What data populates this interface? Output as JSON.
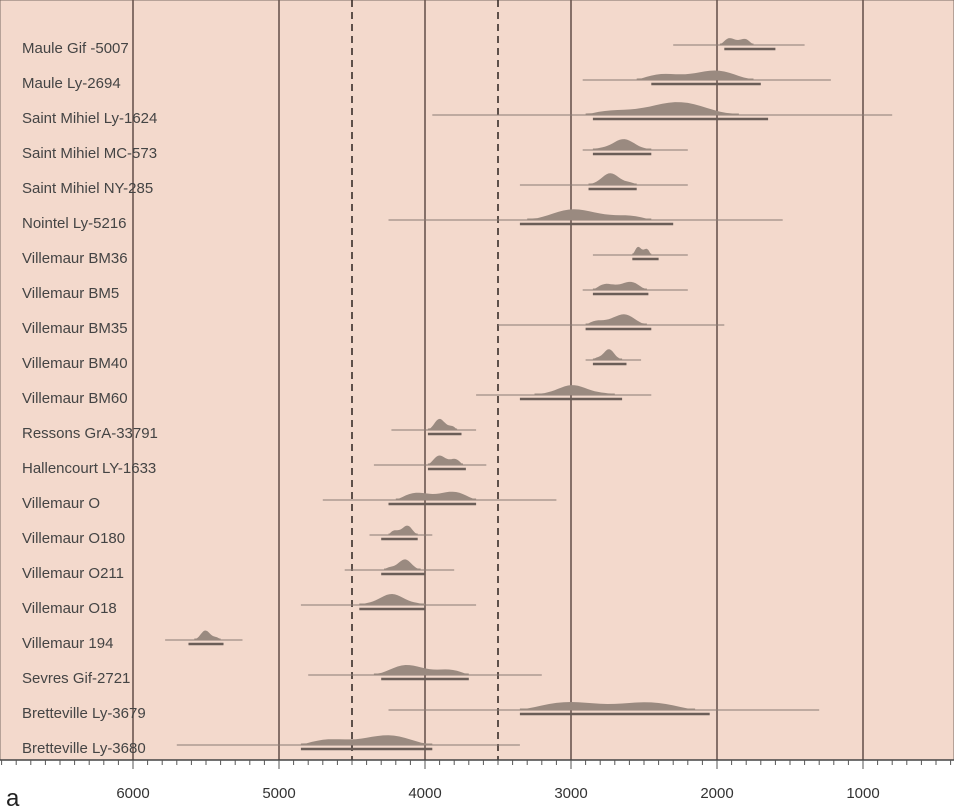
{
  "chart_data": {
    "type": "range",
    "panel_label": "a",
    "x_axis": {
      "reversed": true,
      "min": 0,
      "max": 6800,
      "ticks": [
        6000,
        5000,
        4000,
        3000,
        2000,
        1000
      ],
      "minor_step": 100
    },
    "dashed_lines": [
      4500,
      3500
    ],
    "grid_lines": [
      6000,
      5000,
      4000,
      3000,
      2000,
      1000
    ],
    "colors": {
      "background": "#f3d9cc",
      "distribution": "#9a8a80",
      "range": "#6b5e58",
      "gridline": "#6a5650",
      "whisker": "#8a7a74"
    },
    "samples": [
      {
        "label": "Maule Gif -5007",
        "peak_from": 1980,
        "peak_to": 1750,
        "range_from": 1950,
        "range_to": 1600,
        "whisker_from": 2300,
        "whisker_to": 1400,
        "height": 10
      },
      {
        "label": "Maule Ly-2694",
        "peak_from": 2550,
        "peak_to": 1750,
        "range_from": 2450,
        "range_to": 1700,
        "whisker_from": 2920,
        "whisker_to": 1220,
        "height": 12
      },
      {
        "label": "Saint Mihiel Ly-1624",
        "peak_from": 2900,
        "peak_to": 1850,
        "range_from": 2850,
        "range_to": 1650,
        "whisker_from": 3950,
        "whisker_to": 800,
        "height": 14
      },
      {
        "label": "Saint Mihiel MC-573",
        "peak_from": 2850,
        "peak_to": 2450,
        "range_from": 2850,
        "range_to": 2450,
        "whisker_from": 2920,
        "whisker_to": 2200,
        "height": 11
      },
      {
        "label": "Saint Mihiel NY-285",
        "peak_from": 2880,
        "peak_to": 2550,
        "range_from": 2880,
        "range_to": 2550,
        "whisker_from": 3350,
        "whisker_to": 2200,
        "height": 12
      },
      {
        "label": "Nointel Ly-5216",
        "peak_from": 3300,
        "peak_to": 2450,
        "range_from": 3350,
        "range_to": 2300,
        "whisker_from": 4250,
        "whisker_to": 1550,
        "height": 12
      },
      {
        "label": "Villemaur BM36",
        "peak_from": 2580,
        "peak_to": 2450,
        "range_from": 2580,
        "range_to": 2400,
        "whisker_from": 2850,
        "whisker_to": 2200,
        "height": 11
      },
      {
        "label": "Villemaur BM5",
        "peak_from": 2850,
        "peak_to": 2480,
        "range_from": 2850,
        "range_to": 2470,
        "whisker_from": 2920,
        "whisker_to": 2200,
        "height": 11
      },
      {
        "label": "Villemaur BM35",
        "peak_from": 2900,
        "peak_to": 2480,
        "range_from": 2900,
        "range_to": 2450,
        "whisker_from": 3500,
        "whisker_to": 1950,
        "height": 12
      },
      {
        "label": "Villemaur BM40",
        "peak_from": 2850,
        "peak_to": 2650,
        "range_from": 2850,
        "range_to": 2620,
        "whisker_from": 2900,
        "whisker_to": 2520,
        "height": 11
      },
      {
        "label": "Villemaur BM60",
        "peak_from": 3250,
        "peak_to": 2700,
        "range_from": 3350,
        "range_to": 2650,
        "whisker_from": 3650,
        "whisker_to": 2450,
        "height": 10
      },
      {
        "label": "Ressons GrA-33791",
        "peak_from": 3980,
        "peak_to": 3780,
        "range_from": 3980,
        "range_to": 3750,
        "whisker_from": 4230,
        "whisker_to": 3650,
        "height": 12
      },
      {
        "label": "Hallencourt LY-1633",
        "peak_from": 3980,
        "peak_to": 3740,
        "range_from": 3980,
        "range_to": 3720,
        "whisker_from": 4350,
        "whisker_to": 3580,
        "height": 12
      },
      {
        "label": "Villemaur O",
        "peak_from": 4200,
        "peak_to": 3650,
        "range_from": 4250,
        "range_to": 3650,
        "whisker_from": 4700,
        "whisker_to": 3100,
        "height": 12
      },
      {
        "label": "Villemaur O180",
        "peak_from": 4250,
        "peak_to": 4050,
        "range_from": 4300,
        "range_to": 4050,
        "whisker_from": 4380,
        "whisker_to": 3950,
        "height": 11
      },
      {
        "label": "Villemaur O211",
        "peak_from": 4280,
        "peak_to": 4030,
        "range_from": 4300,
        "range_to": 4000,
        "whisker_from": 4550,
        "whisker_to": 3800,
        "height": 11
      },
      {
        "label": "Villemaur O18",
        "peak_from": 4450,
        "peak_to": 4000,
        "range_from": 4450,
        "range_to": 4000,
        "whisker_from": 4850,
        "whisker_to": 3650,
        "height": 11
      },
      {
        "label": "Villemaur 194",
        "peak_from": 5580,
        "peak_to": 5400,
        "range_from": 5620,
        "range_to": 5380,
        "whisker_from": 5780,
        "whisker_to": 5250,
        "height": 10
      },
      {
        "label": "Sevres Gif-2721",
        "peak_from": 4350,
        "peak_to": 3700,
        "range_from": 4300,
        "range_to": 3700,
        "whisker_from": 4800,
        "whisker_to": 3200,
        "height": 12
      },
      {
        "label": "Bretteville Ly-3679",
        "peak_from": 3350,
        "peak_to": 2150,
        "range_from": 3350,
        "range_to": 2050,
        "whisker_from": 4250,
        "whisker_to": 1300,
        "height": 12
      },
      {
        "label": "Bretteville Ly-3680",
        "peak_from": 4850,
        "peak_to": 3950,
        "range_from": 4850,
        "range_to": 3950,
        "whisker_from": 5700,
        "whisker_to": 3350,
        "height": 12
      }
    ]
  }
}
